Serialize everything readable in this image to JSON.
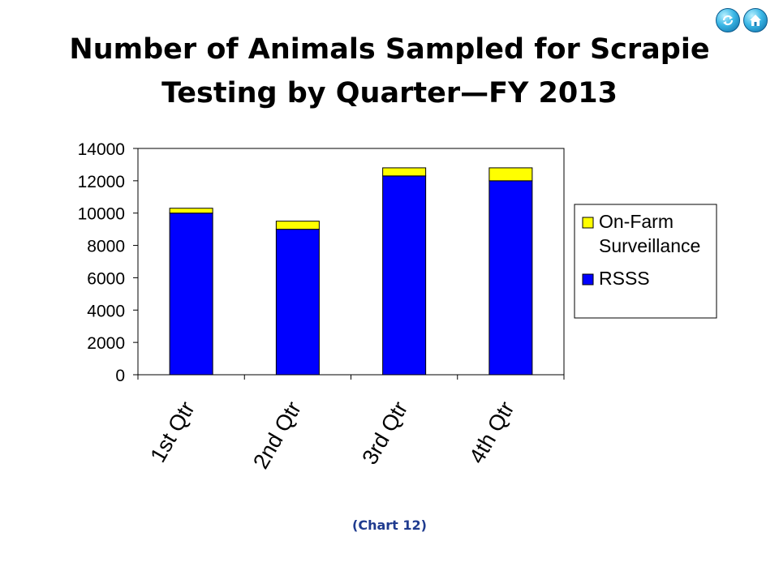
{
  "title_line1": "Number of Animals Sampled for Scrapie",
  "title_line2": "Testing by Quarter—FY 2013",
  "caption": "(Chart 12)",
  "nav": {
    "back_icon": "refresh-icon",
    "home_icon": "home-icon",
    "color": "#3ab7e6"
  },
  "chart_data": {
    "type": "bar",
    "stacked": true,
    "categories": [
      "1st Qtr",
      "2nd Qtr",
      "3rd Qtr",
      "4th Qtr"
    ],
    "series": [
      {
        "name": "RSSS",
        "color": "#0000ff",
        "values": [
          10000,
          9000,
          12300,
          12000
        ]
      },
      {
        "name": "On-Farm Surveillance",
        "color": "#ffff00",
        "values": [
          300,
          500,
          500,
          800
        ]
      }
    ],
    "legend": [
      {
        "lines": [
          "On-Farm",
          "Surveillance"
        ],
        "color": "#ffff00"
      },
      {
        "lines": [
          "RSSS"
        ],
        "color": "#0000ff"
      }
    ],
    "ylim": [
      0,
      14000
    ],
    "yticks": [
      0,
      2000,
      4000,
      6000,
      8000,
      10000,
      12000,
      14000
    ],
    "grid": false,
    "legend_position": "right"
  }
}
